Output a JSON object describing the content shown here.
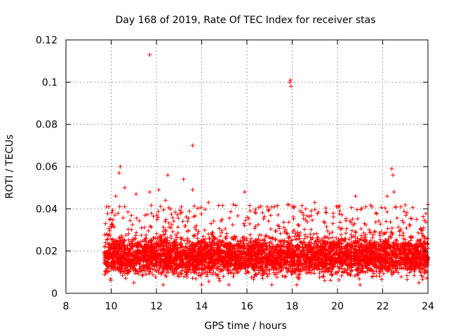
{
  "chart_data": {
    "type": "scatter",
    "title": "Day 168 of 2019, Rate Of TEC Index for receiver stas",
    "xlabel": "GPS time / hours",
    "ylabel": "ROTI / TECUs",
    "xlim": [
      8,
      24
    ],
    "ylim": [
      0,
      0.12
    ],
    "xticks": [
      "8",
      "10",
      "12",
      "14",
      "16",
      "18",
      "20",
      "22",
      "24"
    ],
    "yticks": [
      "0",
      "0.02",
      "0.04",
      "0.06",
      "0.08",
      "0.1",
      "0.12"
    ],
    "grid": true,
    "marker": "+",
    "color": "#ff0000",
    "series": [
      {
        "name": "ROTI",
        "x_range": [
          9.7,
          24.0
        ],
        "dense_band": [
          0.005,
          0.028
        ],
        "points": [
          [
            11.7,
            0.113
          ],
          [
            17.9,
            0.1
          ],
          [
            17.95,
            0.098
          ],
          [
            17.92,
            0.101
          ],
          [
            13.6,
            0.07
          ],
          [
            10.4,
            0.06
          ],
          [
            10.35,
            0.057
          ],
          [
            12.5,
            0.056
          ],
          [
            22.4,
            0.059
          ],
          [
            22.45,
            0.056
          ],
          [
            13.2,
            0.054
          ],
          [
            10.6,
            0.05
          ],
          [
            12.1,
            0.049
          ],
          [
            13.6,
            0.049
          ],
          [
            15.9,
            0.048
          ],
          [
            22.2,
            0.046
          ],
          [
            20.8,
            0.046
          ],
          [
            11.1,
            0.047
          ],
          [
            11.7,
            0.048
          ],
          [
            9.8,
            0.041
          ],
          [
            24.0,
            0.042
          ],
          [
            19.0,
            0.043
          ],
          [
            17.8,
            0.042
          ],
          [
            15.4,
            0.042
          ],
          [
            16.9,
            0.041
          ],
          [
            14.3,
            0.043
          ],
          [
            10.2,
            0.046
          ],
          [
            12.4,
            0.044
          ],
          [
            20.1,
            0.039
          ],
          [
            23.5,
            0.035
          ],
          [
            21.7,
            0.038
          ],
          [
            18.6,
            0.04
          ],
          [
            16.4,
            0.038
          ],
          [
            14.9,
            0.035
          ],
          [
            13.1,
            0.041
          ],
          [
            9.75,
            0.033
          ],
          [
            11.5,
            0.037
          ],
          [
            19.8,
            0.033
          ],
          [
            22.8,
            0.041
          ],
          [
            22.5,
            0.048
          ],
          [
            17.1,
            0.004
          ],
          [
            15.2,
            0.004
          ],
          [
            18.2,
            0.004
          ],
          [
            21.0,
            0.004
          ],
          [
            12.3,
            0.004
          ],
          [
            14.0,
            0.004
          ],
          [
            11.0,
            0.005
          ],
          [
            23.6,
            0.005
          ]
        ]
      }
    ]
  }
}
